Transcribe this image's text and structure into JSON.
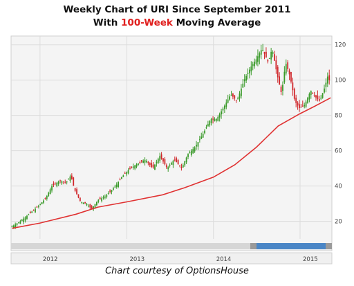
{
  "title_line1": "Weekly Chart of URI Since September 2011",
  "title_line2_prefix": "With ",
  "title_line2_highlight": "100-Week",
  "title_line2_suffix": " Moving Average",
  "credit": "Chart courtesy of OptionsHouse",
  "colors": {
    "up_candle": "#3a9a2a",
    "down_candle": "#d0262a",
    "moving_average": "#e03232",
    "plot_background": "#f4f4f4",
    "grid": "#dcdcdc",
    "scrollbar_thumb": "#4a86c6"
  },
  "chart_data": {
    "type": "candlestick",
    "x_tick_labels": [
      "2012",
      "2013",
      "2014",
      "2015"
    ],
    "y_tick_labels": [
      "20",
      "40",
      "60",
      "80",
      "100",
      "120"
    ],
    "y_axis_side": "right",
    "ylim": [
      10,
      125
    ],
    "xlim": [
      "2011-09-01",
      "2015-05-15"
    ],
    "grid": true,
    "price_path": [
      [
        "2011-09-05",
        17
      ],
      [
        "2011-10-10",
        20
      ],
      [
        "2011-11-15",
        24
      ],
      [
        "2011-12-20",
        28
      ],
      [
        "2012-01-25",
        33
      ],
      [
        "2012-02-20",
        40
      ],
      [
        "2012-03-25",
        43
      ],
      [
        "2012-04-20",
        42
      ],
      [
        "2012-05-10",
        46
      ],
      [
        "2012-05-25",
        38
      ],
      [
        "2012-06-20",
        31
      ],
      [
        "2012-07-15",
        30
      ],
      [
        "2012-08-05",
        27
      ],
      [
        "2012-09-01",
        32
      ],
      [
        "2012-10-01",
        34
      ],
      [
        "2012-11-15",
        40
      ],
      [
        "2012-12-10",
        45
      ],
      [
        "2013-01-15",
        50
      ],
      [
        "2013-02-20",
        53
      ],
      [
        "2013-03-20",
        55
      ],
      [
        "2013-04-20",
        50
      ],
      [
        "2013-05-20",
        57
      ],
      [
        "2013-06-20",
        50
      ],
      [
        "2013-07-20",
        55
      ],
      [
        "2013-08-20",
        50
      ],
      [
        "2013-09-15",
        58
      ],
      [
        "2013-10-15",
        62
      ],
      [
        "2013-11-20",
        70
      ],
      [
        "2013-12-20",
        78
      ],
      [
        "2014-01-15",
        78
      ],
      [
        "2014-02-15",
        85
      ],
      [
        "2014-03-15",
        92
      ],
      [
        "2014-04-10",
        88
      ],
      [
        "2014-05-10",
        100
      ],
      [
        "2014-06-10",
        108
      ],
      [
        "2014-07-01",
        112
      ],
      [
        "2014-07-25",
        118
      ],
      [
        "2014-08-20",
        110
      ],
      [
        "2014-09-05",
        118
      ],
      [
        "2014-09-25",
        104
      ],
      [
        "2014-10-15",
        92
      ],
      [
        "2014-11-01",
        110
      ],
      [
        "2014-11-20",
        102
      ],
      [
        "2014-12-10",
        88
      ],
      [
        "2014-12-30",
        84
      ],
      [
        "2015-01-20",
        86
      ],
      [
        "2015-02-15",
        94
      ],
      [
        "2015-03-10",
        90
      ],
      [
        "2015-03-25",
        88
      ],
      [
        "2015-04-15",
        96
      ],
      [
        "2015-05-01",
        104
      ],
      [
        "2015-05-10",
        92
      ]
    ],
    "moving_average_path": [
      [
        "2011-09-05",
        16
      ],
      [
        "2012-01-01",
        19
      ],
      [
        "2012-06-01",
        24
      ],
      [
        "2012-09-01",
        28
      ],
      [
        "2013-01-01",
        31
      ],
      [
        "2013-06-01",
        35
      ],
      [
        "2013-09-01",
        39
      ],
      [
        "2014-01-01",
        45
      ],
      [
        "2014-04-01",
        52
      ],
      [
        "2014-07-01",
        62
      ],
      [
        "2014-10-01",
        74
      ],
      [
        "2015-01-01",
        81
      ],
      [
        "2015-03-01",
        85
      ],
      [
        "2015-05-10",
        90
      ]
    ]
  }
}
